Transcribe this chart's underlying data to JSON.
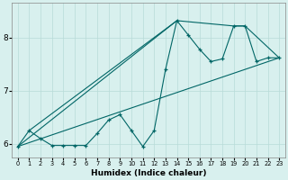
{
  "xlabel": "Humidex (Indice chaleur)",
  "bg_color": "#d8f0ee",
  "grid_color": "#b8dbd8",
  "line_color": "#006666",
  "xlim": [
    -0.5,
    23.5
  ],
  "ylim": [
    5.75,
    8.65
  ],
  "yticks": [
    6,
    7,
    8
  ],
  "xticks": [
    0,
    1,
    2,
    3,
    4,
    5,
    6,
    7,
    8,
    9,
    10,
    11,
    12,
    13,
    14,
    15,
    16,
    17,
    18,
    19,
    20,
    21,
    22,
    23
  ],
  "line1_x": [
    0,
    1,
    2,
    3,
    4,
    5,
    6,
    7,
    8,
    9,
    10,
    11,
    12,
    13,
    14,
    15,
    16,
    17,
    18,
    19,
    20,
    21,
    22,
    23
  ],
  "line1_y": [
    5.95,
    6.25,
    6.1,
    5.97,
    5.97,
    5.97,
    5.97,
    6.2,
    6.45,
    6.55,
    6.25,
    5.95,
    6.25,
    7.4,
    8.32,
    8.05,
    7.78,
    7.55,
    7.6,
    8.22,
    8.22,
    7.55,
    7.62,
    7.62
  ],
  "line2_x": [
    0,
    23
  ],
  "line2_y": [
    5.95,
    7.62
  ],
  "line3_x": [
    0,
    14,
    19,
    20,
    23
  ],
  "line3_y": [
    5.95,
    8.32,
    8.22,
    8.22,
    7.62
  ],
  "line4_x": [
    1,
    14
  ],
  "line4_y": [
    6.25,
    8.32
  ]
}
